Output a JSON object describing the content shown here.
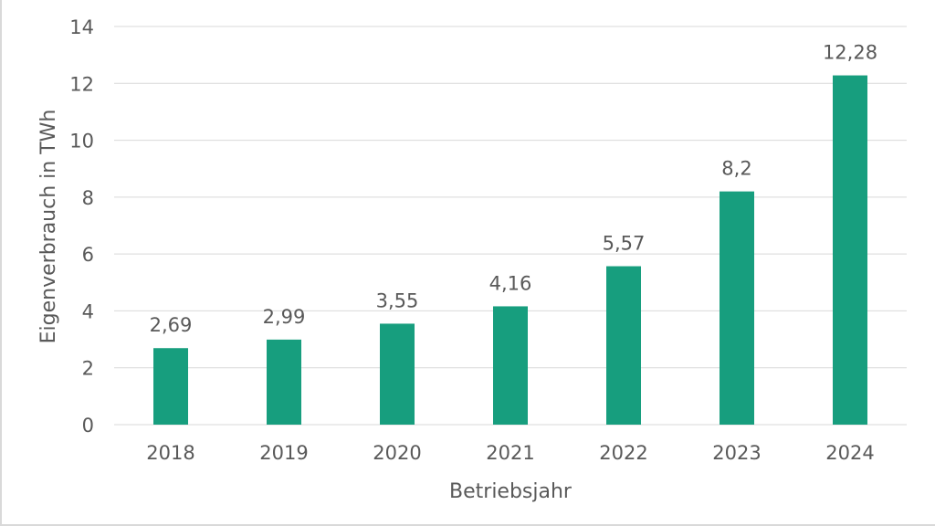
{
  "chart_data": {
    "type": "bar",
    "title": "",
    "xlabel": "Betriebsjahr",
    "ylabel": "Eigenverbrauch in TWh",
    "categories": [
      "2018",
      "2019",
      "2020",
      "2021",
      "2022",
      "2023",
      "2024"
    ],
    "values": [
      2.69,
      2.99,
      3.55,
      4.16,
      5.57,
      8.2,
      12.28
    ],
    "data_labels": [
      "2,69",
      "2,99",
      "3,55",
      "4,16",
      "5,57",
      "8,2",
      "12,28"
    ],
    "ylim": [
      0,
      14
    ],
    "yticks": [
      0,
      2,
      4,
      6,
      8,
      10,
      12,
      14
    ],
    "grid": true,
    "legend": "none",
    "bar_color": "#179e7e"
  }
}
